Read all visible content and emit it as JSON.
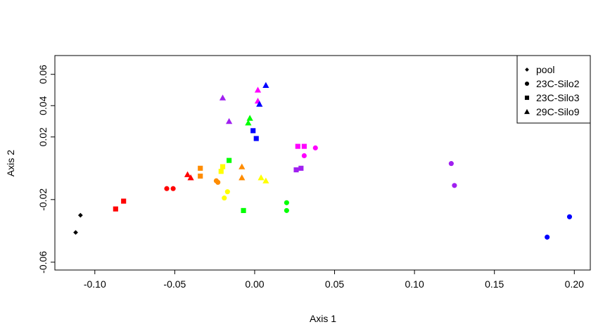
{
  "chart_data": {
    "type": "scatter",
    "title": "",
    "xlabel": "Axis 1",
    "ylabel": "Axis 2",
    "xlim": [
      -0.125,
      0.21
    ],
    "ylim": [
      -0.065,
      0.072
    ],
    "x_ticks": [
      -0.1,
      -0.05,
      0.0,
      0.05,
      0.1,
      0.15,
      0.2
    ],
    "x_tick_labels": [
      "-0.10",
      "-0.05",
      "0.00",
      "0.05",
      "0.10",
      "0.15",
      "0.20"
    ],
    "y_ticks": [
      -0.06,
      -0.02,
      0.02,
      0.04,
      0.06
    ],
    "y_tick_labels": [
      "-0.06",
      "-0.02",
      "0.02",
      "0.04",
      "0.06"
    ],
    "grid": false,
    "legend_position": "top-right",
    "legend": [
      {
        "label": "pool",
        "shape": "diamond"
      },
      {
        "label": "23C-Silo2",
        "shape": "circle"
      },
      {
        "label": "23C-Silo3",
        "shape": "square"
      },
      {
        "label": "29C-Silo9",
        "shape": "triangle"
      }
    ],
    "points": [
      {
        "x": -0.109,
        "y": -0.03,
        "shape": "diamond",
        "color": "#000000"
      },
      {
        "x": -0.112,
        "y": -0.041,
        "shape": "diamond",
        "color": "#000000"
      },
      {
        "x": -0.055,
        "y": -0.013,
        "shape": "circle",
        "color": "#ff0000"
      },
      {
        "x": -0.051,
        "y": -0.013,
        "shape": "circle",
        "color": "#ff0000"
      },
      {
        "x": -0.024,
        "y": -0.008,
        "shape": "circle",
        "color": "#ff8c00"
      },
      {
        "x": -0.023,
        "y": -0.009,
        "shape": "circle",
        "color": "#ff8c00"
      },
      {
        "x": -0.017,
        "y": -0.015,
        "shape": "circle",
        "color": "#ffff00"
      },
      {
        "x": -0.019,
        "y": -0.019,
        "shape": "circle",
        "color": "#ffff00"
      },
      {
        "x": 0.02,
        "y": -0.022,
        "shape": "circle",
        "color": "#00ff00"
      },
      {
        "x": 0.02,
        "y": -0.027,
        "shape": "circle",
        "color": "#00ff00"
      },
      {
        "x": 0.031,
        "y": 0.008,
        "shape": "circle",
        "color": "#ff00ff"
      },
      {
        "x": 0.038,
        "y": 0.013,
        "shape": "circle",
        "color": "#ff00ff"
      },
      {
        "x": 0.123,
        "y": 0.003,
        "shape": "circle",
        "color": "#a020f0"
      },
      {
        "x": 0.125,
        "y": -0.011,
        "shape": "circle",
        "color": "#a020f0"
      },
      {
        "x": 0.183,
        "y": -0.044,
        "shape": "circle",
        "color": "#0000ff"
      },
      {
        "x": 0.197,
        "y": -0.031,
        "shape": "circle",
        "color": "#0000ff"
      },
      {
        "x": -0.087,
        "y": -0.026,
        "shape": "square",
        "color": "#ff0000"
      },
      {
        "x": -0.082,
        "y": -0.021,
        "shape": "square",
        "color": "#ff0000"
      },
      {
        "x": -0.034,
        "y": 0.0,
        "shape": "square",
        "color": "#ff8c00"
      },
      {
        "x": -0.034,
        "y": -0.005,
        "shape": "square",
        "color": "#ff8c00"
      },
      {
        "x": -0.02,
        "y": 0.001,
        "shape": "square",
        "color": "#ffff00"
      },
      {
        "x": -0.021,
        "y": -0.002,
        "shape": "square",
        "color": "#ffff00"
      },
      {
        "x": -0.016,
        "y": 0.005,
        "shape": "square",
        "color": "#00ff00"
      },
      {
        "x": -0.007,
        "y": -0.027,
        "shape": "square",
        "color": "#00ff00"
      },
      {
        "x": 0.027,
        "y": 0.014,
        "shape": "square",
        "color": "#ff00ff"
      },
      {
        "x": 0.031,
        "y": 0.014,
        "shape": "square",
        "color": "#ff00ff"
      },
      {
        "x": 0.026,
        "y": -0.001,
        "shape": "square",
        "color": "#a020f0"
      },
      {
        "x": 0.029,
        "y": 0.0,
        "shape": "square",
        "color": "#a020f0"
      },
      {
        "x": -0.001,
        "y": 0.024,
        "shape": "square",
        "color": "#0000ff"
      },
      {
        "x": 0.001,
        "y": 0.019,
        "shape": "square",
        "color": "#0000ff"
      },
      {
        "x": -0.042,
        "y": -0.004,
        "shape": "triangle",
        "color": "#ff0000"
      },
      {
        "x": -0.04,
        "y": -0.006,
        "shape": "triangle",
        "color": "#ff0000"
      },
      {
        "x": -0.008,
        "y": 0.001,
        "shape": "triangle",
        "color": "#ff8c00"
      },
      {
        "x": -0.008,
        "y": -0.006,
        "shape": "triangle",
        "color": "#ff8c00"
      },
      {
        "x": 0.004,
        "y": -0.006,
        "shape": "triangle",
        "color": "#ffff00"
      },
      {
        "x": 0.007,
        "y": -0.008,
        "shape": "triangle",
        "color": "#ffff00"
      },
      {
        "x": -0.003,
        "y": 0.032,
        "shape": "triangle",
        "color": "#00ff00"
      },
      {
        "x": -0.004,
        "y": 0.029,
        "shape": "triangle",
        "color": "#00ff00"
      },
      {
        "x": 0.002,
        "y": 0.05,
        "shape": "triangle",
        "color": "#ff00ff"
      },
      {
        "x": 0.002,
        "y": 0.043,
        "shape": "triangle",
        "color": "#ff00ff"
      },
      {
        "x": -0.02,
        "y": 0.045,
        "shape": "triangle",
        "color": "#a020f0"
      },
      {
        "x": -0.016,
        "y": 0.03,
        "shape": "triangle",
        "color": "#a020f0"
      },
      {
        "x": 0.007,
        "y": 0.053,
        "shape": "triangle",
        "color": "#0000ff"
      },
      {
        "x": 0.003,
        "y": 0.041,
        "shape": "triangle",
        "color": "#0000ff"
      }
    ]
  }
}
